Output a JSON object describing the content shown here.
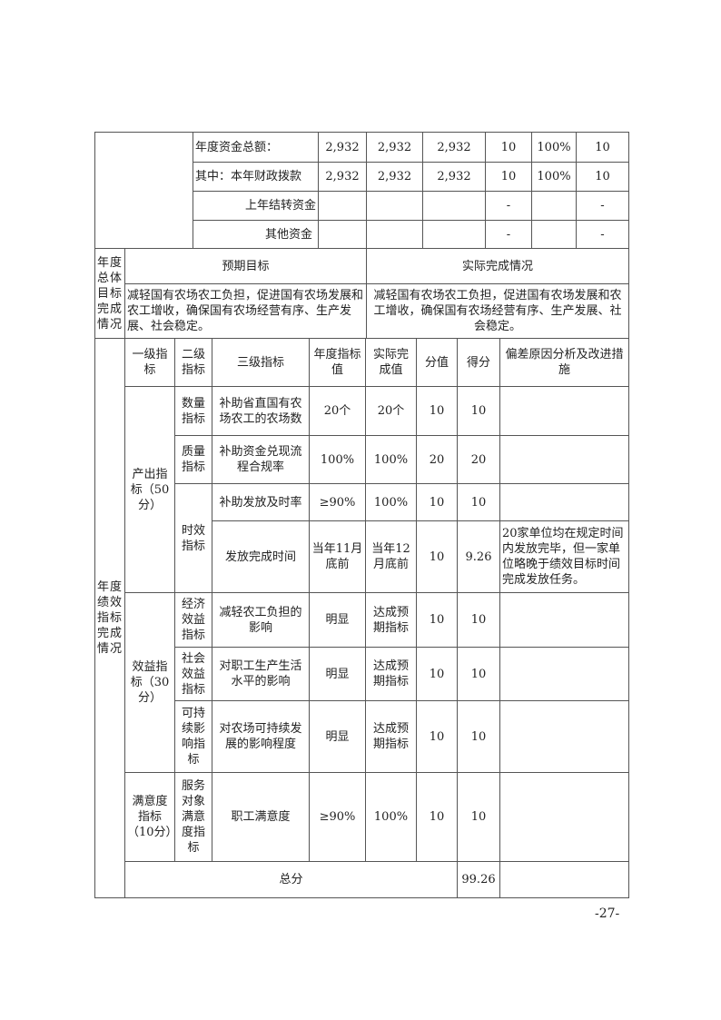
{
  "funds": {
    "rows": [
      {
        "label": "年度资金总额：",
        "c1": "2,932",
        "c2": "2,932",
        "c3": "2,932",
        "c4": "10",
        "c5": "100%",
        "c6": "10"
      },
      {
        "label": "其中：本年财政拨款",
        "c1": "2,932",
        "c2": "2,932",
        "c3": "2,932",
        "c4": "10",
        "c5": "100%",
        "c6": "10"
      },
      {
        "label": "上年结转资金",
        "c1": "",
        "c2": "",
        "c3": "",
        "c4": "-",
        "c5": "",
        "c6": "-"
      },
      {
        "label": "其他资金",
        "c1": "",
        "c2": "",
        "c3": "",
        "c4": "-",
        "c5": "",
        "c6": "-"
      }
    ]
  },
  "goals": {
    "label": "年度总体目标完成情况",
    "expected_header": "预期目标",
    "actual_header": "实际完成情况",
    "expected": "减轻国有农场农工负担，促进国有农场发展和农工增收，确保国有农场经营有序、生产发展、社会稳定。",
    "actual": "减轻国有农场农工负担，促进国有农场发展和农工增收，确保国有农场经营有序、生产发展、社会稳定。"
  },
  "indicators": {
    "label": "年度绩效指标完成情况",
    "headers": [
      "一级指标",
      "二级指标",
      "三级指标",
      "年度指标值",
      "实际完成值",
      "分值",
      "得分",
      "偏差原因分析及改进措施"
    ],
    "groups": [
      {
        "name": "产出指标（50分）"
      },
      {
        "name": "效益指标（30分）"
      },
      {
        "name": "满意度指标（10分）"
      }
    ],
    "sub": [
      "数量指标",
      "质量指标",
      "时效指标",
      "经济效益指标",
      "社会效益指标",
      "可持续影响指标",
      "服务对象满意度指标"
    ],
    "rows": [
      {
        "name": "补助省直国有农场农工的农场数",
        "target": "20个",
        "actual": "20个",
        "weight": "10",
        "score": "10",
        "note": ""
      },
      {
        "name": "补助资金兑现流程合规率",
        "target": "100%",
        "actual": "100%",
        "weight": "20",
        "score": "20",
        "note": ""
      },
      {
        "name": "补助发放及时率",
        "target": "≥90%",
        "actual": "100%",
        "weight": "10",
        "score": "10",
        "note": ""
      },
      {
        "name": "发放完成时间",
        "target": "当年11月底前",
        "actual": "当年12月底前",
        "weight": "10",
        "score": "9.26",
        "note": "20家单位均在规定时间内发放完毕，但一家单位略晚于绩效目标时间完成发放任务。"
      },
      {
        "name": "减轻农工负担的影响",
        "target": "明显",
        "actual": "达成预期指标",
        "weight": "10",
        "score": "10",
        "note": ""
      },
      {
        "name": "对职工生产生活水平的影响",
        "target": "明显",
        "actual": "达成预期指标",
        "weight": "10",
        "score": "10",
        "note": ""
      },
      {
        "name": "对农场可持续发展的影响程度",
        "target": "明显",
        "actual": "达成预期指标",
        "weight": "10",
        "score": "10",
        "note": ""
      },
      {
        "name": "职工满意度",
        "target": "≥90%",
        "actual": "100%",
        "weight": "10",
        "score": "10",
        "note": ""
      }
    ],
    "total_label": "总分",
    "total_score": "99.26"
  },
  "page_number": "-27-"
}
